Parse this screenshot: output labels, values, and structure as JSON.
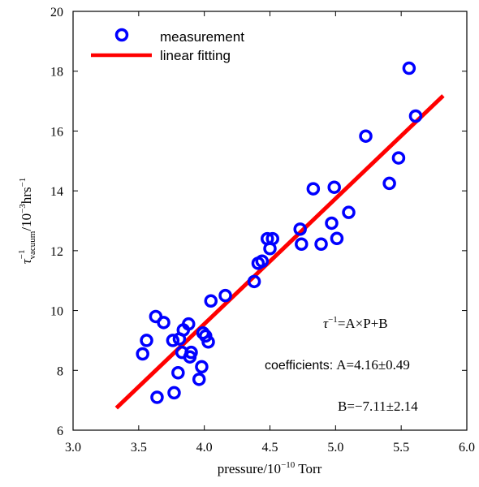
{
  "chart_data": {
    "type": "scatter",
    "title": "",
    "xlabel": "pressure/10",
    "xlabel_exp": "−10",
    "xlabel_unit": "Torr",
    "ylabel": "τ",
    "ylabel_sup": "−1",
    "ylabel_sub": "vacuum",
    "ylabel_rest": "/10",
    "ylabel_exp": "−3",
    "ylabel_unit": "hrs",
    "ylabel_unit_exp": "−1",
    "xlim": [
      3.0,
      6.0
    ],
    "ylim": [
      6,
      20
    ],
    "xticks": [
      "3.0",
      "3.5",
      "4.0",
      "4.5",
      "5.0",
      "5.5",
      "6.0"
    ],
    "yticks": [
      "6",
      "8",
      "10",
      "12",
      "14",
      "16",
      "18",
      "20"
    ],
    "grid": false,
    "legend_position": "top-left",
    "series": [
      {
        "name": "measurement",
        "kind": "markers",
        "color": "#0000ff",
        "points": [
          [
            3.53,
            8.55
          ],
          [
            3.56,
            9.0
          ],
          [
            3.63,
            9.8
          ],
          [
            3.64,
            7.1
          ],
          [
            3.69,
            9.6
          ],
          [
            3.76,
            9.0
          ],
          [
            3.77,
            7.25
          ],
          [
            3.8,
            7.92
          ],
          [
            3.81,
            9.05
          ],
          [
            3.83,
            8.6
          ],
          [
            3.84,
            9.35
          ],
          [
            3.88,
            9.55
          ],
          [
            3.89,
            8.45
          ],
          [
            3.9,
            8.6
          ],
          [
            3.96,
            7.7
          ],
          [
            3.98,
            8.12
          ],
          [
            3.99,
            9.25
          ],
          [
            4.01,
            9.15
          ],
          [
            4.03,
            8.95
          ],
          [
            4.05,
            10.32
          ],
          [
            4.16,
            10.5
          ],
          [
            4.38,
            10.97
          ],
          [
            4.41,
            11.58
          ],
          [
            4.44,
            11.65
          ],
          [
            4.48,
            12.4
          ],
          [
            4.5,
            12.07
          ],
          [
            4.52,
            12.4
          ],
          [
            4.73,
            12.72
          ],
          [
            4.74,
            12.22
          ],
          [
            4.83,
            14.07
          ],
          [
            4.89,
            12.22
          ],
          [
            4.97,
            12.92
          ],
          [
            4.99,
            14.12
          ],
          [
            5.01,
            12.41
          ],
          [
            5.1,
            13.28
          ],
          [
            5.23,
            15.83
          ],
          [
            5.41,
            14.25
          ],
          [
            5.48,
            15.1
          ],
          [
            5.56,
            18.1
          ],
          [
            5.61,
            16.5
          ]
        ]
      },
      {
        "name": "linear fitting",
        "kind": "line",
        "color": "#ff0000",
        "points": [
          [
            3.33,
            6.74
          ],
          [
            5.82,
            17.18
          ]
        ]
      }
    ],
    "annotations": {
      "equation": {
        "tau": "τ",
        "sup": "−1",
        "rest": "=A×P+B"
      },
      "coef_label": "coefficients:",
      "coef_a": "A=4.16±0.49",
      "coef_b": "B=−7.11±2.14"
    }
  }
}
